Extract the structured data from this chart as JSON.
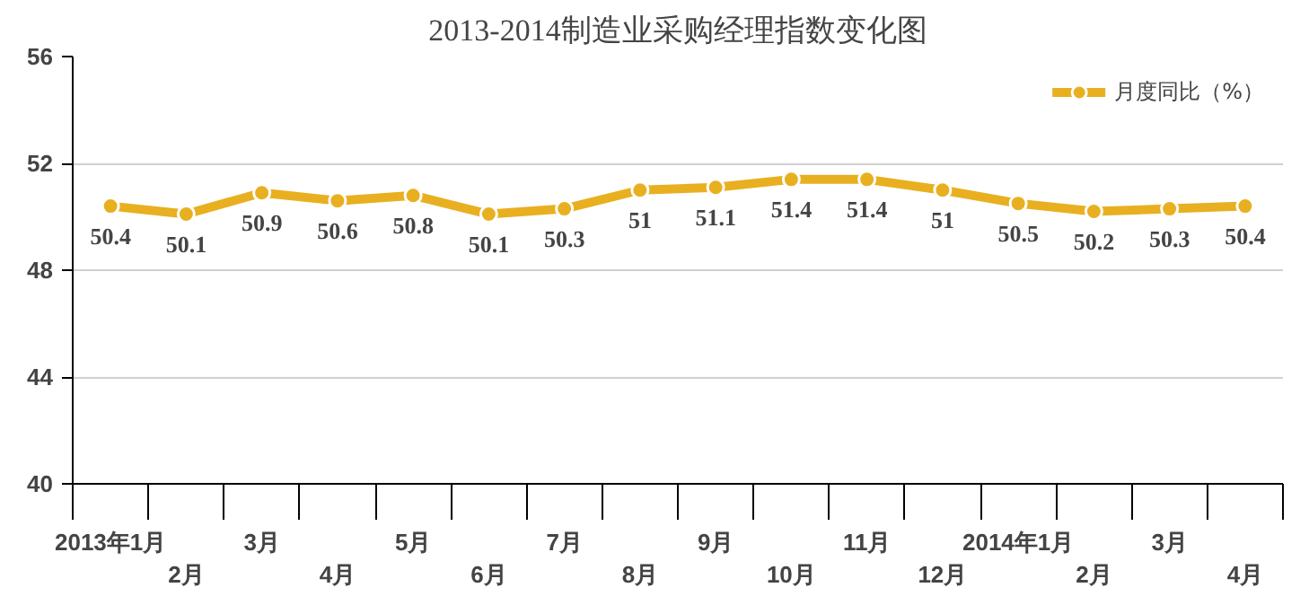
{
  "chart_data": {
    "type": "line",
    "title": "2013-2014制造业采购经理指数变化图",
    "categories": [
      "2013年1月",
      "2月",
      "3月",
      "4月",
      "5月",
      "6月",
      "7月",
      "8月",
      "9月",
      "10月",
      "11月",
      "12月",
      "2014年1月",
      "2月",
      "3月",
      "4月"
    ],
    "series": [
      {
        "name": "月度同比（%）",
        "color": "#e8b020",
        "values": [
          50.4,
          50.1,
          50.9,
          50.6,
          50.8,
          50.1,
          50.3,
          51,
          51.1,
          51.4,
          51.4,
          51,
          50.5,
          50.2,
          50.3,
          50.4
        ]
      }
    ],
    "ylim": [
      40,
      56
    ],
    "yticks": [
      40,
      44,
      48,
      52,
      56
    ],
    "grid": "y",
    "legend": "top right",
    "marker": "circle",
    "data_labels": true
  }
}
